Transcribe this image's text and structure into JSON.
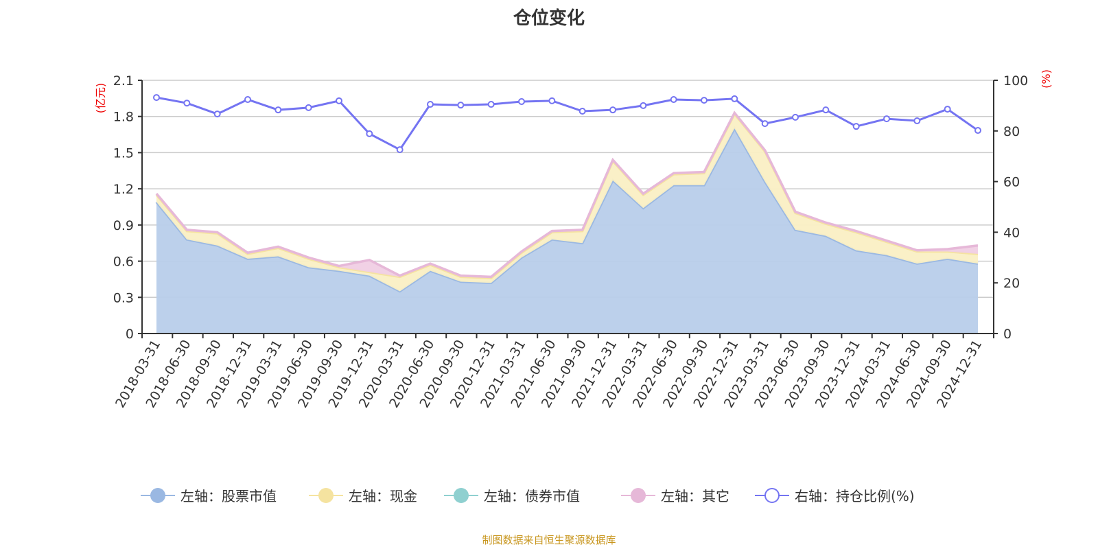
{
  "chart_data": {
    "type": "area",
    "title": "仓位变化",
    "ylabel_left": "(亿元)",
    "ylabel_right": "(%)",
    "ylim_left": [
      0,
      2.1
    ],
    "ylim_right": [
      0,
      100
    ],
    "yticks_left": [
      "0",
      "0.3",
      "0.6",
      "0.9",
      "1.2",
      "1.5",
      "1.8",
      "2.1"
    ],
    "yticks_right": [
      "0",
      "20",
      "40",
      "60",
      "80",
      "100"
    ],
    "grid": true,
    "stacked": true,
    "legend_position": "bottom",
    "categories": [
      "2018-03-31",
      "2018-06-30",
      "2018-09-30",
      "2018-12-31",
      "2019-03-31",
      "2019-06-30",
      "2019-09-30",
      "2019-12-31",
      "2020-03-31",
      "2020-06-30",
      "2020-09-30",
      "2020-12-31",
      "2021-03-31",
      "2021-06-30",
      "2021-09-30",
      "2021-12-31",
      "2022-03-31",
      "2022-06-30",
      "2022-09-30",
      "2022-12-31",
      "2023-03-31",
      "2023-06-30",
      "2023-09-30",
      "2023-12-31",
      "2024-03-31",
      "2024-06-30",
      "2024-09-30",
      "2024-12-31"
    ],
    "series": [
      {
        "name": "左轴：股票市值",
        "axis": "left",
        "color": "#9ab8e2",
        "fill": "#b8cdea",
        "values": [
          1.09,
          0.78,
          0.73,
          0.62,
          0.64,
          0.55,
          0.52,
          0.48,
          0.35,
          0.52,
          0.43,
          0.42,
          0.63,
          0.78,
          0.75,
          1.27,
          1.04,
          1.23,
          1.23,
          1.7,
          1.26,
          0.86,
          0.81,
          0.69,
          0.65,
          0.58,
          0.62,
          0.58
        ]
      },
      {
        "name": "左轴：现金",
        "axis": "left",
        "color": "#f5e3a0",
        "fill": "#faefc4",
        "values": [
          0.06,
          0.07,
          0.1,
          0.04,
          0.07,
          0.07,
          0.03,
          0.03,
          0.12,
          0.05,
          0.04,
          0.04,
          0.04,
          0.06,
          0.1,
          0.16,
          0.11,
          0.09,
          0.1,
          0.12,
          0.25,
          0.14,
          0.1,
          0.15,
          0.11,
          0.1,
          0.06,
          0.08
        ]
      },
      {
        "name": "左轴：债券市值",
        "axis": "left",
        "color": "#8fd0d0",
        "fill": "#bfe6e6",
        "values": [
          0,
          0,
          0,
          0,
          0,
          0,
          0,
          0,
          0,
          0,
          0,
          0,
          0,
          0,
          0,
          0,
          0,
          0,
          0,
          0,
          0,
          0,
          0,
          0,
          0,
          0,
          0,
          0
        ]
      },
      {
        "name": "左轴：其它",
        "axis": "left",
        "color": "#e6b8d8",
        "fill": "#f0cfe4",
        "values": [
          0.01,
          0.01,
          0.01,
          0.01,
          0.01,
          0.01,
          0.01,
          0.1,
          0.01,
          0.01,
          0.01,
          0.01,
          0.01,
          0.01,
          0.01,
          0.01,
          0.01,
          0.01,
          0.01,
          0.01,
          0.01,
          0.01,
          0.01,
          0.01,
          0.01,
          0.01,
          0.02,
          0.07
        ]
      },
      {
        "name": "右轴：持仓比例(%)",
        "axis": "right",
        "color": "#7474f2",
        "values": [
          93.2,
          91.0,
          86.7,
          92.4,
          88.3,
          89.2,
          91.9,
          78.9,
          72.6,
          90.5,
          90.2,
          90.5,
          91.6,
          91.9,
          87.8,
          88.3,
          90.0,
          92.4,
          92.1,
          92.7,
          82.9,
          85.4,
          88.3,
          81.8,
          84.8,
          84.0,
          88.6,
          80.2
        ]
      }
    ]
  },
  "footer": "制图数据来自恒生聚源数据库"
}
